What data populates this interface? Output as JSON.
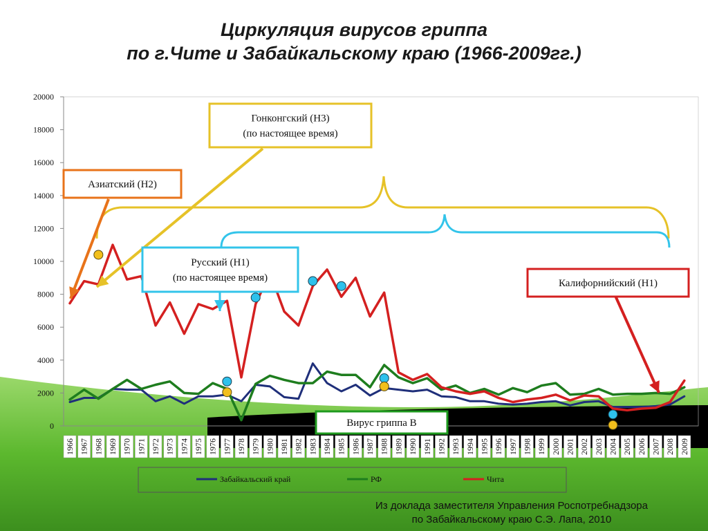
{
  "title": {
    "line1": "Циркуляция вирусов гриппа",
    "line2": "по г.Чите и Забайкальскому краю (1966-2009гг.)"
  },
  "source": {
    "line1": "Из доклада заместителя Управления Роспотребнадзора",
    "line2": "по Забайкальскому краю С.Э. Лапа, 2010"
  },
  "colors": {
    "zabaikalsky": "#1f2f7a",
    "rf": "#1e7d1e",
    "chita": "#d42020",
    "asian_box": "#e8731a",
    "hongkong_box": "#e6c228",
    "russian_box": "#33c4ea",
    "california_box": "#d42020",
    "virus_b_box": "#1e9a1e",
    "marker_blue": "#2ec1ec",
    "marker_gold": "#f2bf1c",
    "green_wave": "#5cb82e",
    "black_band": "#000000"
  },
  "annotations": {
    "asian": "Азиатский (Н2)",
    "hongkong_line1": "Гонконгский (Н3)",
    "hongkong_line2": "(по настоящее время)",
    "russian_line1": "Русский (Н1)",
    "russian_line2": "(по настоящее время)",
    "california": "Калифорнийский (Н1)",
    "virus_b": "Вирус гриппа В"
  },
  "chart_data": {
    "type": "line",
    "x": [
      1966,
      1967,
      1968,
      1969,
      1970,
      1971,
      1972,
      1973,
      1974,
      1975,
      1976,
      1977,
      1978,
      1979,
      1980,
      1981,
      1982,
      1983,
      1984,
      1985,
      1986,
      1987,
      1988,
      1989,
      1990,
      1991,
      1992,
      1993,
      1994,
      1995,
      1996,
      1997,
      1998,
      1999,
      2000,
      2001,
      2002,
      2003,
      2004,
      2005,
      2006,
      2007,
      2008,
      2009
    ],
    "ylim": [
      0,
      20000
    ],
    "yticks": [
      0,
      2000,
      4000,
      6000,
      8000,
      10000,
      12000,
      14000,
      16000,
      18000,
      20000
    ],
    "series": [
      {
        "name": "Забайкальский край",
        "values": [
          1450,
          1700,
          1700,
          2250,
          2200,
          2200,
          1500,
          1800,
          1350,
          1800,
          1800,
          1900,
          1500,
          2500,
          2400,
          1750,
          1650,
          3800,
          2600,
          2100,
          2500,
          1850,
          2300,
          2200,
          2100,
          2200,
          1800,
          1750,
          1500,
          1500,
          1350,
          1300,
          1350,
          1450,
          1500,
          1250,
          1450,
          1500,
          1150,
          1150,
          1150,
          1200,
          1300,
          1800
        ]
      },
      {
        "name": "РФ",
        "values": [
          1600,
          2200,
          1650,
          2250,
          2800,
          2250,
          2500,
          2700,
          2000,
          1950,
          2600,
          2250,
          350,
          2550,
          3050,
          2800,
          2600,
          2600,
          3300,
          3100,
          3100,
          2350,
          3700,
          2950,
          2600,
          2900,
          2200,
          2450,
          2000,
          2250,
          1900,
          2300,
          2050,
          2450,
          2600,
          1900,
          1950,
          2250,
          1900,
          1950,
          1950,
          2000,
          1950,
          2350
        ]
      },
      {
        "name": "Чита",
        "values": [
          7450,
          8800,
          8600,
          11000,
          8900,
          9100,
          6100,
          7500,
          5600,
          7400,
          7100,
          7600,
          2950,
          7400,
          9300,
          6950,
          6100,
          8500,
          9500,
          7850,
          9000,
          6650,
          8100,
          3250,
          2800,
          3150,
          2350,
          2100,
          1950,
          2100,
          1700,
          1450,
          1600,
          1700,
          1900,
          1550,
          1850,
          1800,
          1050,
          950,
          1050,
          1100,
          1450,
          2750
        ]
      }
    ],
    "legend": [
      "Забайкальский край",
      "РФ",
      "Чита"
    ],
    "legend_position": "bottom",
    "blue_markers": [
      {
        "x": 1977,
        "y": 2700
      },
      {
        "x": 1979,
        "y": 7800
      },
      {
        "x": 1983,
        "y": 8800
      },
      {
        "x": 1985,
        "y": 8500
      },
      {
        "x": 1988,
        "y": 2900
      },
      {
        "x": 2004,
        "y": 700
      }
    ],
    "gold_markers": [
      {
        "x": 1968,
        "y": 10400
      },
      {
        "x": 1977,
        "y": 2050
      },
      {
        "x": 1988,
        "y": 2400
      },
      {
        "x": 2004,
        "y": 50
      }
    ]
  }
}
